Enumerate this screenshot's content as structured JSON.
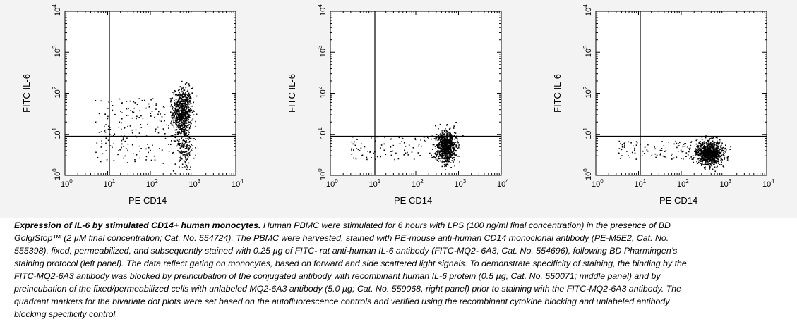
{
  "chart_data": [
    {
      "type": "scatter",
      "panel": "left",
      "xlabel": "PE CD14",
      "ylabel": "FITC IL-6",
      "x_scale": "log",
      "y_scale": "log",
      "xlim": [
        1,
        10000
      ],
      "ylim": [
        1,
        10000
      ],
      "x_tick_labels": [
        "10",
        "10",
        "10",
        "10",
        "10"
      ],
      "x_tick_exponents": [
        "0",
        "1",
        "2",
        "3",
        "4"
      ],
      "y_tick_labels": [
        "10",
        "10",
        "10",
        "10",
        "10"
      ],
      "y_tick_exponents": [
        "0",
        "1",
        "2",
        "3",
        "4"
      ],
      "quadrant_marker": {
        "x": 11,
        "y": 9
      },
      "clusters": [
        {
          "x": 550,
          "y": 35,
          "spread_x": 0.11,
          "spread_y": 0.3,
          "count": 700
        },
        {
          "x": 600,
          "y": 5,
          "spread_x": 0.12,
          "spread_y": 0.3,
          "count": 170
        },
        {
          "x_range": [
            5,
            450
          ],
          "y_range": [
            2,
            80
          ],
          "count": 190
        }
      ]
    },
    {
      "type": "scatter",
      "panel": "middle",
      "xlabel": "PE CD14",
      "ylabel": "FITC IL-6",
      "x_scale": "log",
      "y_scale": "log",
      "xlim": [
        1,
        10000
      ],
      "ylim": [
        1,
        10000
      ],
      "x_tick_labels": [
        "10",
        "10",
        "10",
        "10",
        "10"
      ],
      "x_tick_exponents": [
        "0",
        "1",
        "2",
        "3",
        "4"
      ],
      "y_tick_labels": [
        "10",
        "10",
        "10",
        "10",
        "10"
      ],
      "y_tick_exponents": [
        "0",
        "1",
        "2",
        "3",
        "4"
      ],
      "quadrant_marker": {
        "x": 11,
        "y": 9
      },
      "clusters": [
        {
          "x": 500,
          "y": 5,
          "spread_x": 0.12,
          "spread_y": 0.2,
          "count": 800
        },
        {
          "x_range": [
            3,
            400
          ],
          "y_range": [
            2.5,
            9
          ],
          "count": 90
        }
      ]
    },
    {
      "type": "scatter",
      "panel": "right",
      "xlabel": "PE CD14",
      "ylabel": "FITC IL-6",
      "x_scale": "log",
      "y_scale": "log",
      "xlim": [
        1,
        10000
      ],
      "ylim": [
        1,
        10000
      ],
      "x_tick_labels": [
        "10",
        "10",
        "10",
        "10",
        "10"
      ],
      "x_tick_exponents": [
        "0",
        "1",
        "2",
        "3",
        "4"
      ],
      "y_tick_labels": [
        "10",
        "10",
        "10",
        "10",
        "10"
      ],
      "y_tick_exponents": [
        "0",
        "1",
        "2",
        "3",
        "4"
      ],
      "quadrant_marker": {
        "x": 11,
        "y": 9
      },
      "clusters": [
        {
          "x": 450,
          "y": 3.5,
          "spread_x": 0.15,
          "spread_y": 0.15,
          "count": 900
        },
        {
          "x_range": [
            3,
            300
          ],
          "y_range": [
            2.5,
            7
          ],
          "count": 110
        }
      ]
    }
  ],
  "caption": {
    "title": "Expression of IL-6 by stimulated CD14+ human monocytes.",
    "body": " Human PBMC were stimulated for 6 hours with LPS (100 ng/ml final concentration) in the presence of BD GolgiStop™ (2 µM final concentration; Cat. No. 554724). The PBMC were harvested, stained with PE-mouse anti-human CD14 monoclonal antibody (PE-M5E2, Cat. No. 555398), fixed, permeabilized, and subsequently stained with 0.25 µg of FITC- rat anti-human IL-6 antibody (FITC-MQ2- 6A3, Cat. No. 554696), following BD  Pharmingen’s staining protocol (left panel). The data reflect gating on monocytes, based on forward and side scattered light signals. To demonstrate specificity of staining, the binding by the FITC-MQ2-6A3 antibody was blocked by preincubation of the conjugated antibody with recombinant human IL-6 protein (0.5 µg, Cat. No. 550071; middle panel) and by preincubation of the fixed/permeabilized cells with unlabeled MQ2-6A3 antibody (5.0 µg; Cat. No. 559068, right panel) prior to staining with the FITC-MQ2-6A3 antibody. The quadrant markers for the bivariate dot plots were set based on the autofluorescence controls and verified using the recombinant cytokine blocking and unlabeled antibody blocking specificity control."
  }
}
